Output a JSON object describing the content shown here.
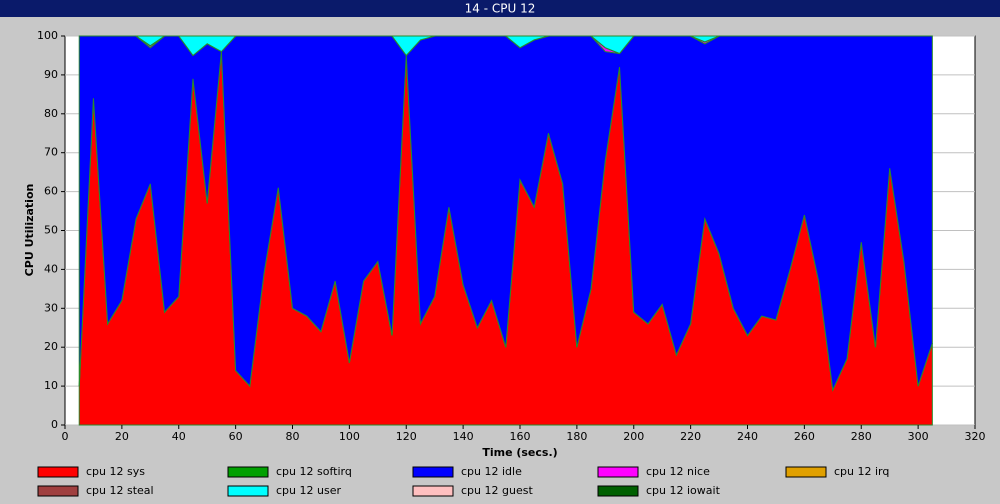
{
  "chart_data": {
    "type": "stacked-area",
    "window_title": "14 - CPU 12",
    "xlabel": "Time (secs.)",
    "ylabel": "CPU Utilization",
    "xlim": [
      0,
      320
    ],
    "ylim": [
      0,
      100
    ],
    "xticks": [
      0,
      20,
      40,
      60,
      80,
      100,
      120,
      140,
      160,
      180,
      200,
      220,
      240,
      260,
      280,
      300,
      320
    ],
    "yticks": [
      0,
      10,
      20,
      30,
      40,
      50,
      60,
      70,
      80,
      90,
      100
    ],
    "grid": true,
    "x": [
      5,
      10,
      15,
      20,
      25,
      30,
      35,
      40,
      45,
      50,
      55,
      60,
      65,
      70,
      75,
      80,
      85,
      90,
      95,
      100,
      105,
      110,
      115,
      120,
      125,
      130,
      135,
      140,
      145,
      150,
      155,
      160,
      165,
      170,
      175,
      180,
      185,
      190,
      195,
      200,
      205,
      210,
      215,
      220,
      225,
      230,
      235,
      240,
      245,
      250,
      255,
      260,
      265,
      270,
      275,
      280,
      285,
      290,
      295,
      300,
      305
    ],
    "series": [
      {
        "name": "cpu 12 sys",
        "color": "#ff0000",
        "values": [
          10,
          84,
          26,
          32,
          53,
          62,
          29,
          33,
          89,
          57,
          96,
          14,
          10,
          39,
          61,
          30,
          28,
          24,
          37,
          16,
          37,
          42,
          23,
          95,
          26,
          33,
          56,
          36,
          25,
          32,
          20,
          63,
          56,
          75,
          62,
          20,
          35,
          68,
          92,
          29,
          26,
          31,
          18,
          26,
          53,
          44,
          30,
          23,
          28,
          27,
          40,
          54,
          37,
          9,
          17,
          47,
          20,
          66,
          42,
          10,
          21
        ]
      },
      {
        "name": "cpu 12 softirq",
        "color": "#00a000",
        "values": [
          0,
          0,
          0,
          0,
          0,
          0,
          0,
          0,
          0,
          0,
          0,
          0,
          0,
          0,
          0,
          0,
          0,
          0,
          0,
          0,
          0,
          0,
          0,
          0,
          0,
          0,
          0,
          0,
          0,
          0,
          0,
          0,
          0,
          0,
          0,
          0,
          0,
          0,
          0,
          0,
          0,
          0,
          0,
          0,
          0,
          0,
          0,
          0,
          0,
          0,
          0,
          0,
          0,
          0,
          0,
          0,
          0,
          0,
          0,
          0,
          0
        ]
      },
      {
        "name": "cpu 12 idle",
        "color": "#0000ff",
        "values": [
          90,
          16,
          74,
          68,
          47,
          35,
          71,
          67,
          6,
          41,
          0,
          86,
          90,
          61,
          39,
          70,
          72,
          76,
          63,
          84,
          63,
          58,
          77,
          0,
          73,
          67,
          44,
          64,
          75,
          68,
          80,
          34,
          43,
          25,
          38,
          80,
          65,
          28,
          3.5,
          71,
          74,
          69,
          82,
          74,
          45,
          56,
          70,
          77,
          72,
          73,
          60,
          46,
          63,
          91,
          83,
          53,
          80,
          34,
          58,
          90,
          79
        ]
      },
      {
        "name": "cpu 12 nice",
        "color": "#ff00ff",
        "values": [
          0,
          0,
          0,
          0,
          0,
          0.5,
          0,
          0,
          0,
          0,
          0,
          0,
          0,
          0,
          0,
          0,
          0,
          0,
          0,
          0,
          0,
          0,
          0,
          0,
          0,
          0,
          0,
          0,
          0,
          0,
          0,
          0,
          0,
          0,
          0,
          0,
          0,
          1,
          0,
          0,
          0,
          0,
          0,
          0,
          0.5,
          0,
          0,
          0,
          0,
          0,
          0,
          0,
          0,
          0,
          0,
          0,
          0,
          0,
          0,
          0,
          0
        ]
      },
      {
        "name": "cpu 12 irq",
        "color": "#e0a000",
        "values": [
          0,
          0,
          0,
          0,
          0,
          0,
          0,
          0,
          0,
          0,
          0,
          0,
          0,
          0,
          0,
          0,
          0,
          0,
          0,
          0,
          0,
          0,
          0,
          0,
          0,
          0,
          0,
          0,
          0,
          0,
          0,
          0,
          0,
          0,
          0,
          0,
          0,
          0,
          0,
          0,
          0,
          0,
          0,
          0,
          0,
          0,
          0,
          0,
          0,
          0,
          0,
          0,
          0,
          0,
          0,
          0,
          0,
          0,
          0,
          0,
          0
        ]
      },
      {
        "name": "cpu 12 steal",
        "color": "#a04040",
        "values": [
          0,
          0,
          0,
          0,
          0,
          0,
          0,
          0,
          0,
          0,
          0,
          0,
          0,
          0,
          0,
          0,
          0,
          0,
          0,
          0,
          0,
          0,
          0,
          0,
          0,
          0,
          0,
          0,
          0,
          0,
          0,
          0,
          0,
          0,
          0,
          0,
          0,
          0,
          0,
          0,
          0,
          0,
          0,
          0,
          0,
          0,
          0,
          0,
          0,
          0,
          0,
          0,
          0,
          0,
          0,
          0,
          0,
          0,
          0,
          0,
          0
        ]
      },
      {
        "name": "cpu 12 user",
        "color": "#00ffff",
        "values": [
          0,
          0,
          0,
          0,
          0,
          2.5,
          0,
          0,
          5,
          2,
          4,
          0,
          0,
          0,
          0,
          0,
          0,
          0,
          0,
          0,
          0,
          0,
          0,
          5,
          1,
          0,
          0,
          0,
          0,
          0,
          0,
          3,
          1,
          0,
          0,
          0,
          0,
          3,
          4.5,
          0,
          0,
          0,
          0,
          0,
          1.5,
          0,
          0,
          0,
          0,
          0,
          0,
          0,
          0,
          0,
          0,
          0,
          0,
          0,
          0,
          0,
          0
        ]
      },
      {
        "name": "cpu 12 guest",
        "color": "#ffc0c0",
        "values": [
          0,
          0,
          0,
          0,
          0,
          0,
          0,
          0,
          0,
          0,
          0,
          0,
          0,
          0,
          0,
          0,
          0,
          0,
          0,
          0,
          0,
          0,
          0,
          0,
          0,
          0,
          0,
          0,
          0,
          0,
          0,
          0,
          0,
          0,
          0,
          0,
          0,
          0,
          0,
          0,
          0,
          0,
          0,
          0,
          0,
          0,
          0,
          0,
          0,
          0,
          0,
          0,
          0,
          0,
          0,
          0,
          0,
          0,
          0,
          0,
          0
        ]
      },
      {
        "name": "cpu 12 iowait",
        "color": "#006000",
        "values": [
          0,
          0,
          0,
          0,
          0,
          0,
          0,
          0,
          0,
          0,
          0,
          0,
          0,
          0,
          0,
          0,
          0,
          0,
          0,
          0,
          0,
          0,
          0,
          0,
          0,
          0,
          0,
          0,
          0,
          0,
          0,
          0,
          0,
          0,
          0,
          0,
          0,
          0,
          0,
          0,
          0,
          0,
          0,
          0,
          0,
          0,
          0,
          0,
          0,
          0,
          0,
          0,
          0,
          0,
          0,
          0,
          0,
          0,
          0,
          0,
          0
        ]
      }
    ]
  }
}
